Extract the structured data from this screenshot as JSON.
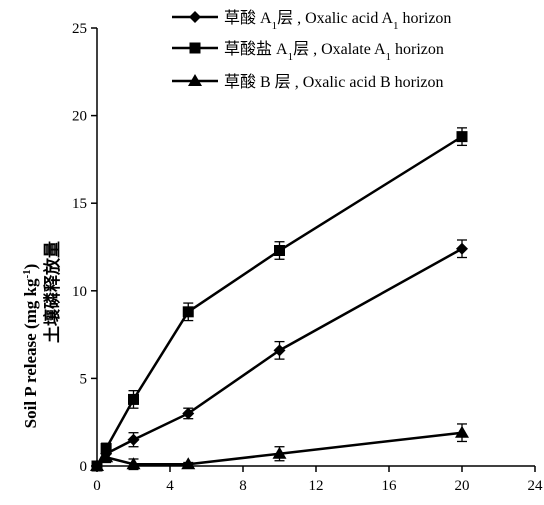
{
  "chart_data": {
    "type": "line",
    "x_ticks": [
      0,
      4,
      8,
      12,
      16,
      20,
      24
    ],
    "y_ticks": [
      0,
      5,
      10,
      15,
      20,
      25
    ],
    "xlim": [
      0,
      24
    ],
    "ylim": [
      0,
      25
    ],
    "xlabel": "",
    "ylabel": "Soil P release (mg kg⁻¹) 土壤磷释放量",
    "ylabel_en": "Soil P release (mg kg",
    "ylabel_exp": "-1",
    "ylabel_en_end": ")",
    "ylabel_zh": "土壤磷释放量",
    "grid": false,
    "legend_position": "top",
    "series": [
      {
        "name": "草酸 A₁层 , Oxalic acid A₁ horizon",
        "marker": "diamond",
        "color": "#000000",
        "x": [
          0,
          0.5,
          2,
          5,
          10,
          20
        ],
        "y": [
          0,
          0.7,
          1.5,
          3.0,
          6.6,
          12.4
        ],
        "err": [
          0.2,
          0.3,
          0.4,
          0.3,
          0.5,
          0.5
        ]
      },
      {
        "name": "草酸盐 A₁层 , Oxalate A₁ horizon",
        "marker": "square",
        "color": "#000000",
        "x": [
          0,
          0.5,
          2,
          5,
          10,
          20
        ],
        "y": [
          0,
          1.0,
          3.8,
          8.8,
          12.3,
          18.8
        ],
        "err": [
          0.2,
          0.3,
          0.5,
          0.5,
          0.5,
          0.5
        ]
      },
      {
        "name": "草酸 B 层 , Oxalic acid B horizon",
        "marker": "triangle",
        "color": "#000000",
        "x": [
          0,
          0.5,
          2,
          5,
          10,
          20
        ],
        "y": [
          0,
          0.5,
          0.1,
          0.1,
          0.7,
          1.9
        ],
        "err": [
          0.2,
          0.3,
          0.3,
          0.1,
          0.4,
          0.5
        ]
      }
    ]
  },
  "legend": [
    {
      "zh": "草酸 A",
      "sub": "1",
      "zh2": "层",
      "en": " , Oxalic acid A",
      "en_sub": "1",
      "en2": " horizon"
    },
    {
      "zh": "草酸盐 A",
      "sub": "1",
      "zh2": "层",
      "en": " , Oxalate A",
      "en_sub": "1",
      "en2": " horizon"
    },
    {
      "zh": "草酸 B 层",
      "sub": "",
      "zh2": "",
      "en": " , Oxalic acid B horizon",
      "en_sub": "",
      "en2": ""
    }
  ]
}
